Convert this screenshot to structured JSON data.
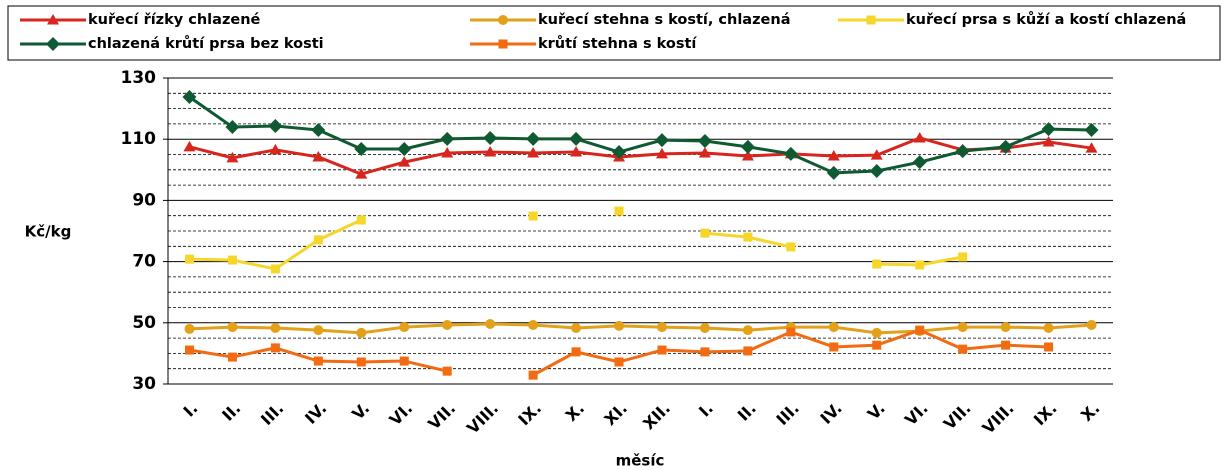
{
  "chart_data": {
    "type": "line",
    "y_label": "Kč/kg",
    "x_label": "měsíc",
    "categories": [
      "I.",
      "II.",
      "III.",
      "IV.",
      "V.",
      "VI.",
      "VII.",
      "VIII.",
      "IX.",
      "X.",
      "XI.",
      "XII.",
      "I.",
      "II.",
      "III.",
      "IV.",
      "V.",
      "VI.",
      "VII.",
      "VIII.",
      "IX.",
      "X."
    ],
    "ylim": [
      30,
      130
    ],
    "yticks": [
      30,
      50,
      70,
      90,
      110,
      130
    ],
    "minor_yticks": [
      35,
      40,
      45,
      55,
      60,
      65,
      75,
      80,
      85,
      95,
      100,
      105,
      115,
      120,
      125
    ],
    "grid": true,
    "series": [
      {
        "name": "kuřecí řízky chlazené",
        "color": "#d7261e",
        "marker": "triangle",
        "values": [
          107.5,
          103.9,
          106.5,
          104.2,
          98.6,
          102.5,
          105.5,
          105.8,
          105.5,
          105.8,
          104.2,
          105.2,
          105.5,
          104.5,
          105.2,
          104.5,
          104.8,
          110.4,
          106.5,
          107.1,
          109.1,
          107.1
        ]
      },
      {
        "name": "kuřecí stehna s kostí, chlazená",
        "color": "#e3a019",
        "marker": "circle",
        "values": [
          48,
          48.6,
          48.3,
          47.6,
          46.7,
          48.6,
          49.3,
          49.6,
          49.3,
          48.3,
          49,
          48.6,
          48.3,
          47.6,
          48.6,
          48.6,
          46.7,
          47.3,
          48.6,
          48.6,
          48.3,
          49.3
        ]
      },
      {
        "name": "kuřecí prsa s kůží a kostí chlazená",
        "color": "#f5d629",
        "marker": "square",
        "values": [
          70.8,
          70.5,
          67.6,
          77.1,
          83.6,
          null,
          null,
          null,
          84.9,
          null,
          86.5,
          null,
          79.3,
          78,
          74.8,
          null,
          69.2,
          68.9,
          71.5,
          null,
          null,
          null
        ]
      },
      {
        "name": "chlazená krůtí prsa bez kosti",
        "color": "#0f5a32",
        "marker": "diamond",
        "values": [
          123.8,
          114,
          114.3,
          113,
          106.8,
          106.8,
          110.1,
          110.4,
          110.1,
          110.1,
          105.8,
          109.7,
          109.4,
          107.5,
          105.2,
          99,
          99.6,
          102.5,
          106.1,
          107.5,
          113.3,
          113
        ]
      },
      {
        "name": "krůtí stehna s kostí",
        "color": "#f26a12",
        "marker": "square",
        "values": [
          41.1,
          38.8,
          41.8,
          37.5,
          37.2,
          37.5,
          34.2,
          null,
          32.9,
          40.5,
          37.2,
          41.1,
          40.5,
          40.8,
          47,
          42.1,
          42.7,
          47.6,
          41.4,
          42.7,
          42.1,
          null
        ]
      }
    ]
  }
}
